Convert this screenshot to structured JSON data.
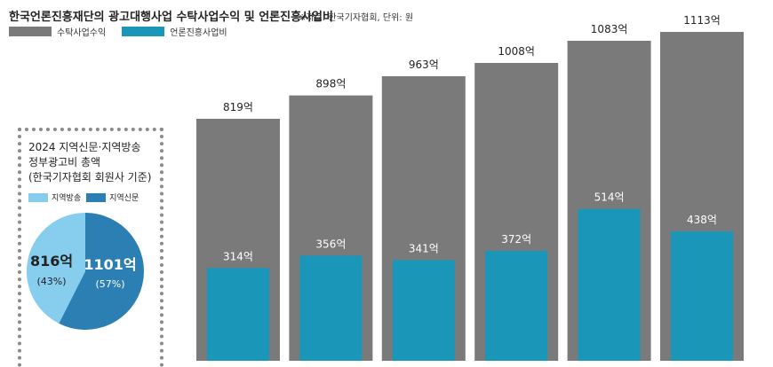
{
  "header": {
    "title": "한국언론진흥재단의 광고대행사업 수탁사업수익 및 언론진흥사업비",
    "source": "※자료: 한국기자협회, 단위: 원"
  },
  "colors": {
    "revenue": "#7a7a7a",
    "promotion": "#1a96b8",
    "pie_broadcast": "#86cdee",
    "pie_newspaper": "#2b7fb3"
  },
  "chart_data": [
    {
      "type": "bar",
      "legend": [
        "수탁사업수익",
        "언론진흥사업비"
      ],
      "legend_position": "top-left",
      "grid": false,
      "series": [
        {
          "name": "수탁사업수익",
          "values": [
            819,
            898,
            963,
            1008,
            1083,
            1113
          ],
          "labels": [
            "819억",
            "898억",
            "963억",
            "1008억",
            "1083억",
            "1113억"
          ]
        },
        {
          "name": "언론진흥사업비",
          "values": [
            314,
            356,
            341,
            372,
            514,
            438
          ],
          "labels": [
            "314억",
            "356억",
            "341억",
            "372억",
            "514억",
            "438억"
          ]
        }
      ]
    },
    {
      "type": "pie",
      "title_lines": [
        "2024 지역신문·지역방송",
        "정부광고비 총액",
        "(한국기자협회 회원사 기준)"
      ],
      "legend": [
        "지역방송",
        "지역신문"
      ],
      "slices": [
        {
          "name": "지역방송",
          "value": 816,
          "label": "816억",
          "pct_label": "(43%)"
        },
        {
          "name": "지역신문",
          "value": 1101,
          "label": "1101억",
          "pct_label": "(57%)"
        }
      ]
    }
  ]
}
